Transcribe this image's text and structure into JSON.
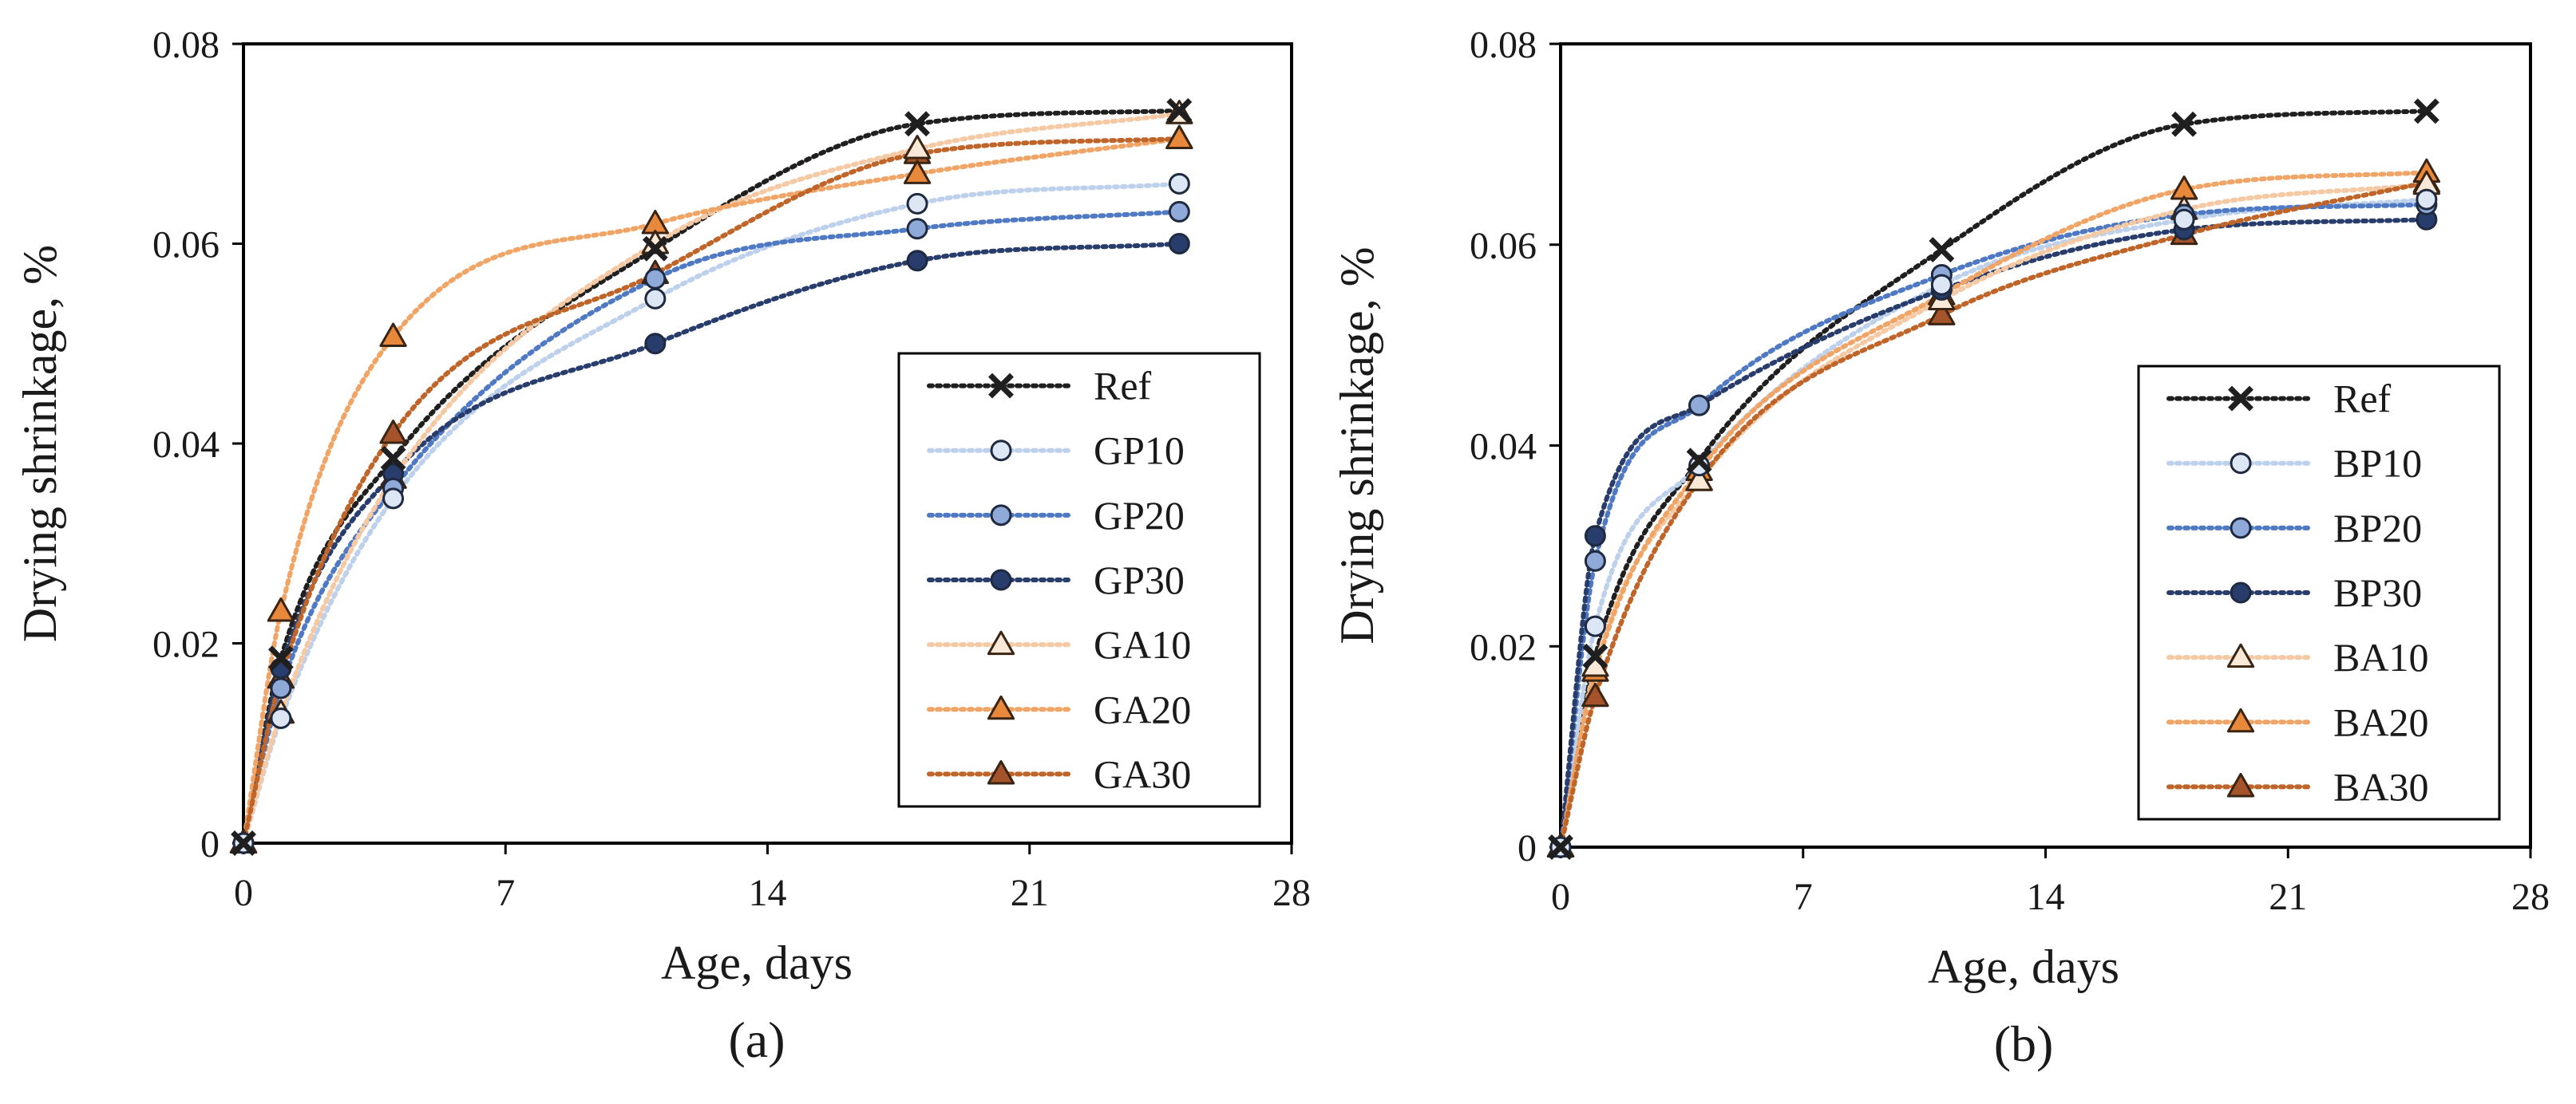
{
  "chart_data": [
    {
      "type": "line",
      "panel_label": "(a)",
      "xlabel": "Age, days",
      "ylabel": "Drying shrinkage, %",
      "xlim": [
        0,
        28
      ],
      "ylim": [
        0,
        0.08
      ],
      "xticks": [
        0,
        7,
        14,
        21,
        28
      ],
      "xtick_labels": [
        "0",
        "7",
        "14",
        "21",
        "28"
      ],
      "yticks": [
        0,
        0.02,
        0.04,
        0.06,
        0.08
      ],
      "ytick_labels": [
        "0",
        "0.02",
        "0.04",
        "0.06",
        "0.08"
      ],
      "grid": false,
      "legend_position": "right",
      "x": [
        0,
        1,
        4,
        11,
        18,
        25
      ],
      "series": [
        {
          "name": "Ref",
          "marker": "x",
          "color": "#1f1f1f",
          "fill": "#1f1f1f",
          "values": [
            0,
            0.0185,
            0.0385,
            0.0595,
            0.072,
            0.0733
          ]
        },
        {
          "name": "GP10",
          "marker": "circle",
          "color": "#bdd0ec",
          "fill": "#dde6f4",
          "values": [
            0,
            0.0125,
            0.0345,
            0.0545,
            0.064,
            0.066
          ]
        },
        {
          "name": "GP20",
          "marker": "circle",
          "color": "#4f79c2",
          "fill": "#8fa9d8",
          "values": [
            0,
            0.0155,
            0.0355,
            0.0565,
            0.0615,
            0.0632
          ]
        },
        {
          "name": "GP30",
          "marker": "circle",
          "color": "#283d6b",
          "fill": "#283d6b",
          "values": [
            0,
            0.0175,
            0.037,
            0.05,
            0.0583,
            0.06
          ]
        },
        {
          "name": "GA10",
          "marker": "triangle",
          "color": "#f4c9a3",
          "fill": "#fbe9d8",
          "values": [
            0,
            0.013,
            0.0365,
            0.06,
            0.0695,
            0.073
          ]
        },
        {
          "name": "GA20",
          "marker": "triangle",
          "color": "#f0a566",
          "fill": "#e8883a",
          "values": [
            0,
            0.0232,
            0.0507,
            0.062,
            0.067,
            0.0705
          ]
        },
        {
          "name": "GA30",
          "marker": "triangle",
          "color": "#c0652a",
          "fill": "#a5532a",
          "values": [
            0,
            0.0165,
            0.041,
            0.057,
            0.069,
            0.0705
          ]
        }
      ]
    },
    {
      "type": "line",
      "panel_label": "(b)",
      "xlabel": "Age, days",
      "ylabel": "Drying shrinkage, %",
      "xlim": [
        0,
        28
      ],
      "ylim": [
        0,
        0.08
      ],
      "xticks": [
        0,
        7,
        14,
        21,
        28
      ],
      "xtick_labels": [
        "0",
        "7",
        "14",
        "21",
        "28"
      ],
      "yticks": [
        0,
        0.02,
        0.04,
        0.06,
        0.08
      ],
      "ytick_labels": [
        "0",
        "0.02",
        "0.04",
        "0.06",
        "0.08"
      ],
      "grid": false,
      "legend_position": "right",
      "x": [
        0,
        1,
        4,
        11,
        18,
        25
      ],
      "series": [
        {
          "name": "Ref",
          "marker": "x",
          "color": "#1f1f1f",
          "fill": "#1f1f1f",
          "values": [
            0,
            0.019,
            0.0385,
            0.0595,
            0.072,
            0.0733
          ]
        },
        {
          "name": "BP10",
          "marker": "circle",
          "color": "#bdd0ec",
          "fill": "#dde6f4",
          "values": [
            0,
            0.022,
            0.038,
            0.056,
            0.0625,
            0.0645
          ]
        },
        {
          "name": "BP20",
          "marker": "circle",
          "color": "#4f79c2",
          "fill": "#8fa9d8",
          "values": [
            0,
            0.0285,
            0.044,
            0.057,
            0.063,
            0.064
          ]
        },
        {
          "name": "BP30",
          "marker": "circle",
          "color": "#283d6b",
          "fill": "#283d6b",
          "values": [
            0,
            0.031,
            0.044,
            0.0555,
            0.0615,
            0.0625
          ]
        },
        {
          "name": "BA10",
          "marker": "triangle",
          "color": "#f4c9a3",
          "fill": "#fbe9d8",
          "values": [
            0,
            0.018,
            0.0365,
            0.0545,
            0.0635,
            0.066
          ]
        },
        {
          "name": "BA20",
          "marker": "triangle",
          "color": "#f0a566",
          "fill": "#e8883a",
          "values": [
            0,
            0.0175,
            0.0375,
            0.055,
            0.0655,
            0.0672
          ]
        },
        {
          "name": "BA30",
          "marker": "triangle",
          "color": "#c0652a",
          "fill": "#a5532a",
          "values": [
            0,
            0.015,
            0.0365,
            0.053,
            0.061,
            0.0662
          ]
        }
      ]
    }
  ]
}
